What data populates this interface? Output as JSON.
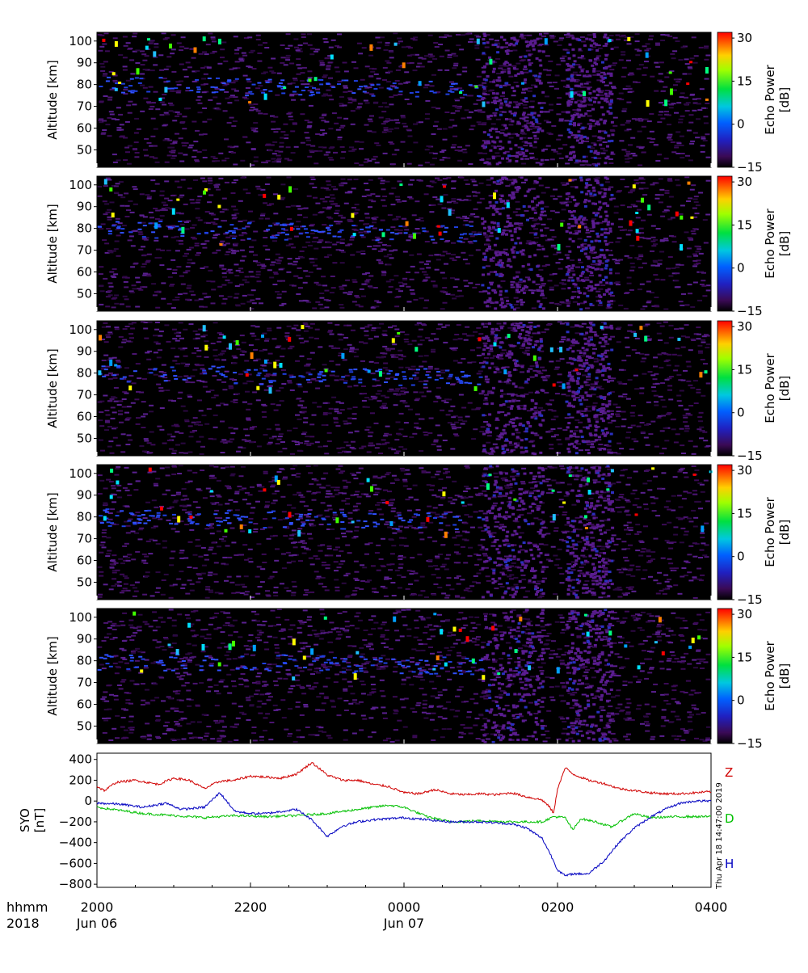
{
  "colors": {
    "Z": "#d00000",
    "D": "#00c000",
    "H": "#0000c0",
    "panel_bg": "#000000"
  },
  "bottom": {
    "row1_label": "hhmm",
    "row2_label": "2018",
    "x_ticks": [
      {
        "hhmm": "2000",
        "date": "Jun 06",
        "hour": 0
      },
      {
        "hhmm": "2200",
        "date": "",
        "hour": 2
      },
      {
        "hhmm": "0000",
        "date": "Jun 07",
        "hour": 4
      },
      {
        "hhmm": "0200",
        "date": "",
        "hour": 6
      },
      {
        "hhmm": "0400",
        "date": "",
        "hour": 8
      }
    ]
  },
  "timestamp": "Thu Apr 18 14:47:00 2019",
  "chart_data": [
    {
      "type": "heatmap",
      "ylabel": "Altitude [km]",
      "y_ticks": [
        50,
        60,
        70,
        80,
        90,
        100
      ],
      "ylim": [
        42,
        104
      ],
      "colorbar": {
        "label_line1": "Echo Power",
        "label_line2": "[dB]",
        "ticks": [
          -15,
          0,
          15,
          30
        ],
        "range": [
          -15,
          32
        ]
      },
      "echo_band_km": 80
    },
    {
      "type": "heatmap",
      "ylabel": "Altitude [km]",
      "y_ticks": [
        50,
        60,
        70,
        80,
        90,
        100
      ],
      "ylim": [
        42,
        104
      ],
      "colorbar": {
        "label_line1": "Echo Power",
        "label_line2": "[dB]",
        "ticks": [
          -15,
          0,
          15,
          30
        ],
        "range": [
          -15,
          32
        ]
      },
      "echo_band_km": 80
    },
    {
      "type": "heatmap",
      "ylabel": "Altitude [km]",
      "y_ticks": [
        50,
        60,
        70,
        80,
        90,
        100
      ],
      "ylim": [
        42,
        104
      ],
      "colorbar": {
        "label_line1": "Echo Power",
        "label_line2": "[dB]",
        "ticks": [
          -15,
          0,
          15,
          30
        ],
        "range": [
          -15,
          32
        ]
      },
      "echo_band_km": 80
    },
    {
      "type": "heatmap",
      "ylabel": "Altitude [km]",
      "y_ticks": [
        50,
        60,
        70,
        80,
        90,
        100
      ],
      "ylim": [
        42,
        104
      ],
      "colorbar": {
        "label_line1": "Echo Power",
        "label_line2": "[dB]",
        "ticks": [
          -15,
          0,
          15,
          30
        ],
        "range": [
          -15,
          32
        ]
      },
      "echo_band_km": 80
    },
    {
      "type": "heatmap",
      "ylabel": "Altitude [km]",
      "y_ticks": [
        50,
        60,
        70,
        80,
        90,
        100
      ],
      "ylim": [
        42,
        104
      ],
      "colorbar": {
        "label_line1": "Echo Power",
        "label_line2": "[dB]",
        "ticks": [
          -15,
          0,
          15,
          30
        ],
        "range": [
          -15,
          32
        ]
      },
      "echo_band_km": 80
    },
    {
      "type": "line",
      "ylabel_line1": "SYO",
      "ylabel_line2": "[nT]",
      "y_ticks": [
        400,
        200,
        0,
        -200,
        -400,
        -600,
        -800
      ],
      "ylim": [
        -830,
        460
      ],
      "xlim": [
        0,
        8
      ],
      "series": [
        {
          "name": "Z",
          "x": [
            0,
            0.1,
            0.25,
            0.5,
            0.8,
            1.0,
            1.2,
            1.4,
            1.6,
            1.8,
            2.0,
            2.2,
            2.4,
            2.6,
            2.8,
            3.0,
            3.2,
            3.4,
            3.6,
            3.8,
            4.0,
            4.2,
            4.4,
            4.6,
            4.8,
            5.0,
            5.2,
            5.4,
            5.6,
            5.8,
            5.9,
            5.95,
            6.0,
            6.1,
            6.2,
            6.3,
            6.4,
            6.6,
            6.8,
            7.0,
            7.2,
            7.4,
            7.6,
            7.8,
            8.0
          ],
          "y": [
            140,
            100,
            180,
            200,
            160,
            220,
            200,
            120,
            190,
            200,
            240,
            230,
            220,
            260,
            370,
            250,
            200,
            200,
            160,
            140,
            80,
            70,
            110,
            70,
            60,
            70,
            60,
            80,
            40,
            10,
            -60,
            -120,
            120,
            320,
            260,
            230,
            200,
            170,
            120,
            100,
            80,
            70,
            70,
            80,
            90
          ]
        },
        {
          "name": "D",
          "x": [
            0,
            0.3,
            0.6,
            1.0,
            1.4,
            1.8,
            2.2,
            2.6,
            3.0,
            3.4,
            3.8,
            4.0,
            4.3,
            4.6,
            5.0,
            5.4,
            5.8,
            5.95,
            6.1,
            6.2,
            6.3,
            6.5,
            6.7,
            7.0,
            7.2,
            7.6,
            8.0
          ],
          "y": [
            -60,
            -90,
            -120,
            -140,
            -160,
            -140,
            -150,
            -140,
            -120,
            -80,
            -40,
            -60,
            -150,
            -200,
            -190,
            -200,
            -200,
            -150,
            -160,
            -280,
            -170,
            -200,
            -250,
            -120,
            -160,
            -150,
            -150
          ]
        },
        {
          "name": "H",
          "x": [
            0,
            0.3,
            0.6,
            0.9,
            1.1,
            1.4,
            1.6,
            1.8,
            2.0,
            2.2,
            2.4,
            2.6,
            2.8,
            3.0,
            3.2,
            3.4,
            3.6,
            3.8,
            4.0,
            4.3,
            4.6,
            5.0,
            5.4,
            5.6,
            5.8,
            5.9,
            6.0,
            6.1,
            6.2,
            6.4,
            6.6,
            6.8,
            7.0,
            7.2,
            7.4,
            7.6,
            7.8,
            8.0
          ],
          "y": [
            -20,
            -30,
            -60,
            -20,
            -80,
            -60,
            80,
            -100,
            -120,
            -120,
            -100,
            -80,
            -180,
            -340,
            -240,
            -200,
            -180,
            -170,
            -160,
            -180,
            -200,
            -200,
            -220,
            -260,
            -360,
            -500,
            -660,
            -720,
            -700,
            -700,
            -580,
            -400,
            -260,
            -160,
            -80,
            -20,
            0,
            0
          ]
        }
      ]
    }
  ]
}
